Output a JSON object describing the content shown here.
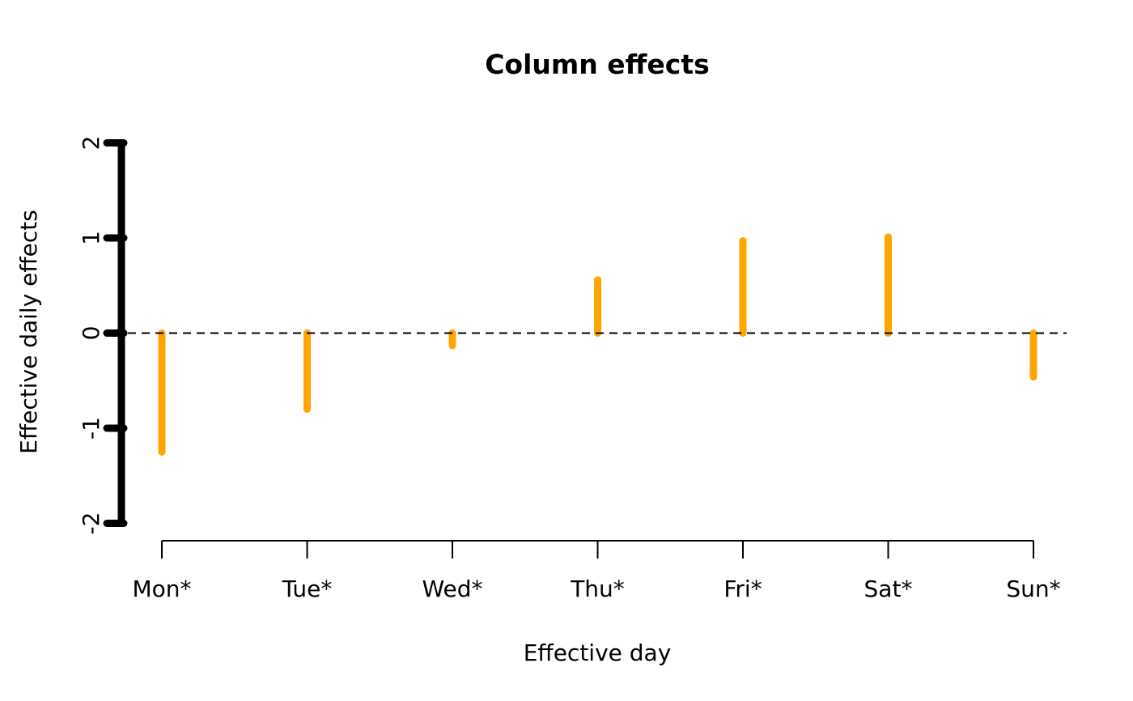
{
  "chart_data": {
    "type": "bar",
    "title": "Column effects",
    "xlabel": "Effective day",
    "ylabel": "Effective daily effects",
    "categories": [
      "Mon*",
      "Tue*",
      "Wed*",
      "Thu*",
      "Fri*",
      "Sat*",
      "Sun*"
    ],
    "values": [
      -1.25,
      -0.8,
      -0.13,
      0.56,
      0.97,
      1.01,
      -0.46
    ],
    "baseline": 0,
    "ylim": [
      -2,
      2
    ],
    "yticks": [
      -2,
      -1,
      0,
      1,
      2
    ],
    "ytick_labels": [
      "-2",
      "-1",
      "0",
      "1",
      "2"
    ],
    "grid": false,
    "zero_line_style": "dashed",
    "legend": "none",
    "bar_color": "#FFA500",
    "axis_color": "#000000",
    "background_color": "#FFFFFF"
  }
}
